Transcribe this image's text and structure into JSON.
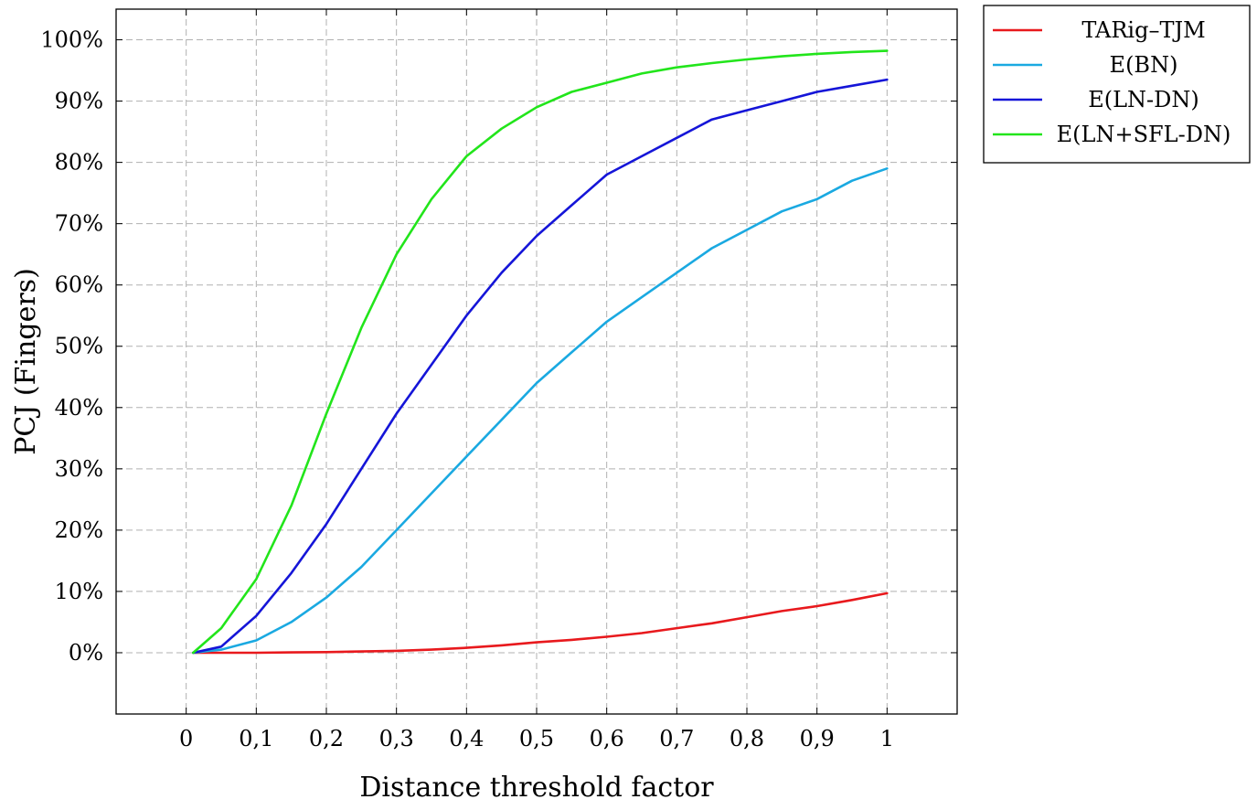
{
  "chart_data": {
    "type": "line",
    "xlabel": "Distance threshold factor",
    "ylabel": "PCJ (Fingers)",
    "xlim": [
      -0.1,
      1.1
    ],
    "ylim": [
      -0.1,
      1.05
    ],
    "x_ticks": [
      0,
      0.1,
      0.2,
      0.3,
      0.4,
      0.5,
      0.6,
      0.7,
      0.8,
      0.9,
      1
    ],
    "x_tick_labels": [
      "0",
      "0,1",
      "0,2",
      "0,3",
      "0,4",
      "0,5",
      "0,6",
      "0,7",
      "0,8",
      "0,9",
      "1"
    ],
    "y_ticks": [
      0,
      0.1,
      0.2,
      0.3,
      0.4,
      0.5,
      0.6,
      0.7,
      0.8,
      0.9,
      1.0
    ],
    "y_tick_labels": [
      "0%",
      "10%",
      "20%",
      "30%",
      "40%",
      "50%",
      "60%",
      "70%",
      "80%",
      "90%",
      "100%"
    ],
    "grid": true,
    "legend_position": "outside-top-right",
    "series": [
      {
        "name": "TARig–TJM",
        "color": "#e8191d",
        "x": [
          0.01,
          0.05,
          0.1,
          0.15,
          0.2,
          0.25,
          0.3,
          0.35,
          0.4,
          0.45,
          0.5,
          0.55,
          0.6,
          0.65,
          0.7,
          0.75,
          0.8,
          0.85,
          0.9,
          0.95,
          1.0
        ],
        "y": [
          0.0,
          0.0,
          0.0,
          0.0005,
          0.001,
          0.002,
          0.003,
          0.005,
          0.008,
          0.012,
          0.017,
          0.021,
          0.026,
          0.032,
          0.04,
          0.048,
          0.058,
          0.068,
          0.076,
          0.086,
          0.097
        ]
      },
      {
        "name": "E(BN)",
        "color": "#1aa9e1",
        "x": [
          0.01,
          0.05,
          0.1,
          0.15,
          0.2,
          0.25,
          0.3,
          0.35,
          0.4,
          0.45,
          0.5,
          0.55,
          0.6,
          0.65,
          0.7,
          0.75,
          0.8,
          0.85,
          0.9,
          0.95,
          1.0
        ],
        "y": [
          0.0,
          0.005,
          0.02,
          0.05,
          0.09,
          0.14,
          0.2,
          0.26,
          0.32,
          0.38,
          0.44,
          0.49,
          0.54,
          0.58,
          0.62,
          0.66,
          0.69,
          0.72,
          0.74,
          0.77,
          0.79
        ]
      },
      {
        "name": "E(LN-DN)",
        "color": "#1515d8",
        "x": [
          0.01,
          0.05,
          0.1,
          0.15,
          0.2,
          0.25,
          0.3,
          0.35,
          0.4,
          0.45,
          0.5,
          0.55,
          0.6,
          0.65,
          0.7,
          0.75,
          0.8,
          0.85,
          0.9,
          0.95,
          1.0
        ],
        "y": [
          0.0,
          0.01,
          0.06,
          0.13,
          0.21,
          0.3,
          0.39,
          0.47,
          0.55,
          0.62,
          0.68,
          0.73,
          0.78,
          0.81,
          0.84,
          0.87,
          0.885,
          0.9,
          0.915,
          0.925,
          0.935
        ]
      },
      {
        "name": "E(LN+SFL-DN)",
        "color": "#22e51b",
        "x": [
          0.01,
          0.05,
          0.1,
          0.15,
          0.2,
          0.25,
          0.3,
          0.35,
          0.4,
          0.45,
          0.5,
          0.55,
          0.6,
          0.65,
          0.7,
          0.75,
          0.8,
          0.85,
          0.9,
          0.95,
          1.0
        ],
        "y": [
          0.0,
          0.04,
          0.12,
          0.24,
          0.39,
          0.53,
          0.65,
          0.74,
          0.81,
          0.855,
          0.89,
          0.915,
          0.93,
          0.945,
          0.955,
          0.962,
          0.968,
          0.973,
          0.977,
          0.98,
          0.982
        ]
      }
    ]
  }
}
